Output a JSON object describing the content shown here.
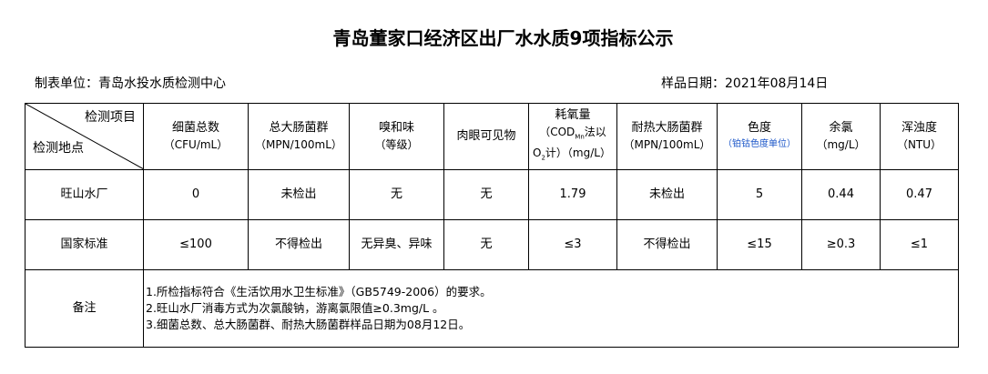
{
  "title": "青岛董家口经济区出厂水水质9项指标公示",
  "unit_label": "制表单位：青岛水投水质检测中心",
  "date_label": "样品日期：2021年08月14日",
  "header": {
    "corner_top": "检测项目",
    "corner_bottom": "检测地点",
    "columns": [
      {
        "name": "细菌总数",
        "unit": "（CFU/mL）"
      },
      {
        "name": "总大肠菌群",
        "unit": "（MPN/100mL）"
      },
      {
        "name": "嗅和味",
        "unit": "（等级）"
      },
      {
        "name": "肉眼可见物",
        "unit": ""
      },
      {
        "name": "耗氧量",
        "unit": "（COD",
        "sub1": "Mn",
        "unit2": "法以",
        "unit3": "O",
        "sub2": "2",
        "unit4": "计）（mg/L）"
      },
      {
        "name": "耐热大肠菌群",
        "unit": "（MPN/100mL）"
      },
      {
        "name": "色度",
        "unit": "（铂钴色度单位）"
      },
      {
        "name": "余氯",
        "unit": "（mg/L）"
      },
      {
        "name": "浑浊度",
        "unit": "（NTU）"
      }
    ]
  },
  "rows": [
    {
      "label": "旺山水厂",
      "values": [
        "0",
        "未检出",
        "无",
        "无",
        "1.79",
        "未检出",
        "5",
        "0.44",
        "0.47"
      ]
    },
    {
      "label": "国家标准",
      "values": [
        "≤100",
        "不得检出",
        "无异臭、异味",
        "无",
        "≤3",
        "不得检出",
        "≤15",
        "≥0.3",
        "≤1"
      ]
    }
  ],
  "notes": {
    "label": "备注",
    "lines": [
      "1.所检指标符合《生活饮用水卫生标准》（GB5749-2006）的要求。",
      "2.旺山水厂消毒方式为次氯酸钠，游离氯限值≥0.3mg/L 。",
      "3.细菌总数、总大肠菌群、耐热大肠菌群样品日期为08月12日。"
    ]
  },
  "colors": {
    "unit_note": "#1a55c8"
  }
}
